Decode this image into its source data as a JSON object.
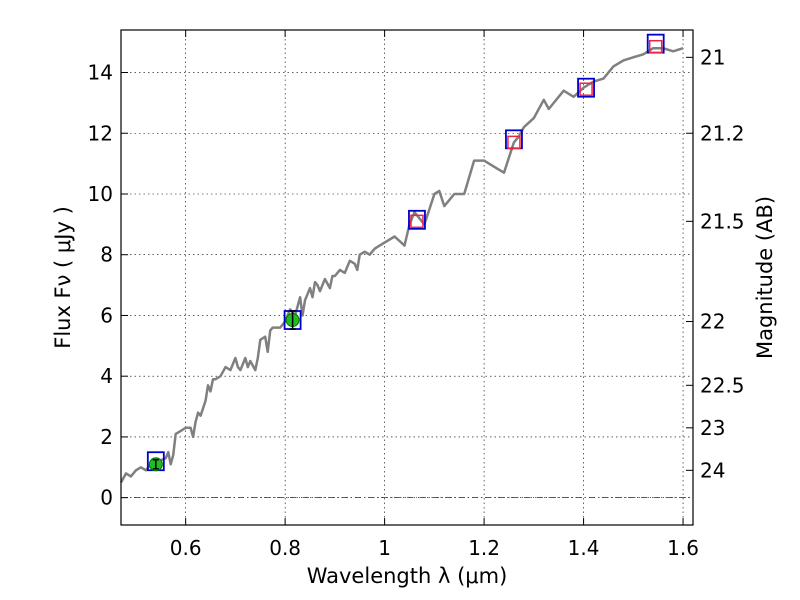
{
  "chart_data": {
    "type": "line",
    "xlabel": "Wavelength  λ (μm)",
    "ylabel": "Flux  Fν  ( μJy )",
    "y2label": "Magnitude (AB)",
    "xlim": [
      0.47,
      1.62
    ],
    "ylim": [
      -0.9,
      15.4
    ],
    "grid": true,
    "xticks": [
      0.6,
      0.8,
      1.0,
      1.2,
      1.4,
      1.6
    ],
    "xtick_labels": [
      "0.6",
      "0.8",
      "1",
      "1.2",
      "1.4",
      "1.6"
    ],
    "yticks": [
      0,
      2,
      4,
      6,
      8,
      10,
      12,
      14
    ],
    "ytick_labels": [
      "0",
      "2",
      "4",
      "6",
      "8",
      "10",
      "12",
      "14"
    ],
    "mag_ticks": [
      {
        "flux": 14.5,
        "label": "21"
      },
      {
        "flux": 12.0,
        "label": "21.2"
      },
      {
        "flux": 9.1,
        "label": "21.5"
      },
      {
        "flux": 5.8,
        "label": "22"
      },
      {
        "flux": 3.7,
        "label": "22.5"
      },
      {
        "flux": 2.3,
        "label": "23"
      },
      {
        "flux": 0.9,
        "label": "24"
      }
    ],
    "zero_line": 0,
    "colors": {
      "spectrum": "#808080",
      "model_box": "#0000cc",
      "predicted": "#ee2244",
      "observed_fill": "#22bb22",
      "observed_edge": "#007700",
      "errorbar": "#000000",
      "grid": "#000000"
    },
    "series": [
      {
        "name": "spectrum",
        "x": [
          0.47,
          0.48,
          0.49,
          0.5,
          0.51,
          0.52,
          0.53,
          0.545,
          0.56,
          0.565,
          0.57,
          0.575,
          0.58,
          0.59,
          0.6,
          0.61,
          0.615,
          0.62,
          0.625,
          0.63,
          0.64,
          0.645,
          0.65,
          0.655,
          0.66,
          0.67,
          0.68,
          0.69,
          0.7,
          0.705,
          0.71,
          0.72,
          0.725,
          0.73,
          0.74,
          0.745,
          0.75,
          0.76,
          0.765,
          0.77,
          0.775,
          0.78,
          0.79,
          0.8,
          0.81,
          0.82,
          0.83,
          0.835,
          0.84,
          0.85,
          0.855,
          0.86,
          0.865,
          0.87,
          0.88,
          0.89,
          0.895,
          0.9,
          0.91,
          0.92,
          0.93,
          0.94,
          0.945,
          0.95,
          0.96,
          0.97,
          0.98,
          0.99,
          1.0,
          1.02,
          1.04,
          1.05,
          1.06,
          1.08,
          1.1,
          1.11,
          1.12,
          1.13,
          1.14,
          1.16,
          1.18,
          1.2,
          1.22,
          1.24,
          1.26,
          1.27,
          1.28,
          1.3,
          1.32,
          1.33,
          1.34,
          1.36,
          1.38,
          1.4,
          1.42,
          1.44,
          1.46,
          1.48,
          1.5,
          1.52,
          1.54,
          1.56,
          1.58,
          1.6
        ],
        "y": [
          0.5,
          0.8,
          0.7,
          0.9,
          1.0,
          0.9,
          1.1,
          1.2,
          1.3,
          1.5,
          1.1,
          1.4,
          2.1,
          2.2,
          2.3,
          2.3,
          2.0,
          2.5,
          2.8,
          2.7,
          3.2,
          3.7,
          3.5,
          3.9,
          3.9,
          4.0,
          4.3,
          4.2,
          4.6,
          4.3,
          4.2,
          4.6,
          4.3,
          4.5,
          4.2,
          4.6,
          5.2,
          5.3,
          4.8,
          5.5,
          5.6,
          5.6,
          5.6,
          5.8,
          6.2,
          6.0,
          6.6,
          6.0,
          6.5,
          6.9,
          6.6,
          7.1,
          7.0,
          6.8,
          7.2,
          6.9,
          7.3,
          7.3,
          7.5,
          7.4,
          7.8,
          7.7,
          7.5,
          8.0,
          8.1,
          8.0,
          8.2,
          8.3,
          8.4,
          8.6,
          8.3,
          9.0,
          9.4,
          9.0,
          10.0,
          10.1,
          9.6,
          9.8,
          10.0,
          10.0,
          11.1,
          11.1,
          10.9,
          10.7,
          11.7,
          11.9,
          12.2,
          12.5,
          13.1,
          12.8,
          13.0,
          13.4,
          13.2,
          13.5,
          13.7,
          13.8,
          14.2,
          14.4,
          14.5,
          14.6,
          14.8,
          14.8,
          14.7,
          14.8
        ]
      },
      {
        "name": "model photometry",
        "x": [
          0.54,
          0.815,
          1.065,
          1.26,
          1.405,
          1.545
        ],
        "y": [
          1.2,
          5.85,
          9.15,
          11.8,
          13.5,
          14.95
        ]
      },
      {
        "name": "predicted photometry",
        "x": [
          1.065,
          1.26,
          1.405,
          1.545
        ],
        "y": [
          9.1,
          11.7,
          13.45,
          14.85
        ]
      },
      {
        "name": "observed photometry",
        "x": [
          0.54,
          0.815
        ],
        "y": [
          1.1,
          5.85
        ],
        "yerr": [
          0.15,
          0.3
        ]
      }
    ]
  }
}
